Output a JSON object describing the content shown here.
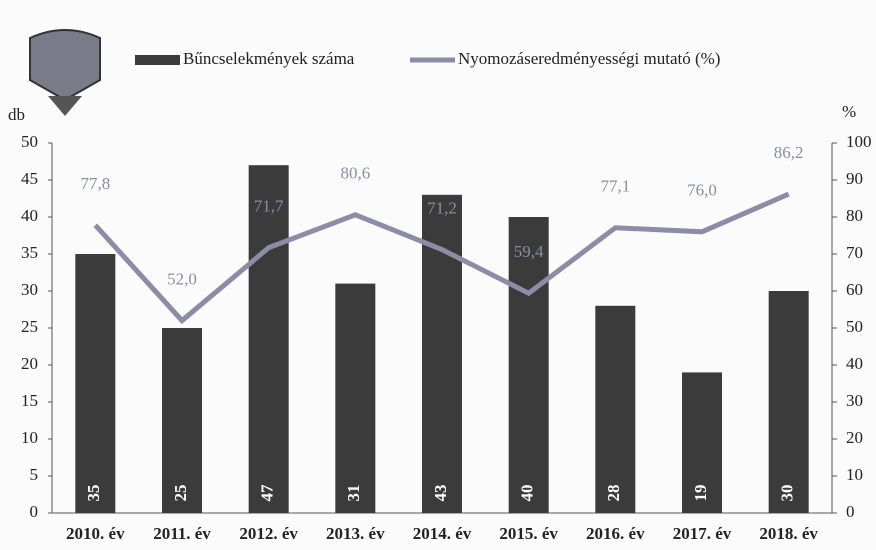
{
  "chart_data": {
    "type": "bar",
    "categories": [
      "2010. év",
      "2011. év",
      "2012. év",
      "2013. év",
      "2014. év",
      "2015. év",
      "2016. év",
      "2017. év",
      "2018. év"
    ],
    "series": [
      {
        "name": "Bűncselekmények száma",
        "color": "#3b3b3b",
        "values": [
          35,
          25,
          47,
          31,
          43,
          40,
          28,
          19,
          30
        ]
      },
      {
        "name": "Nyomozáseredményességi mutató (%)",
        "type": "line",
        "axis": "y2",
        "color": "#8c8ca6",
        "values": [
          77.8,
          52.0,
          71.7,
          80.6,
          71.2,
          59.4,
          77.1,
          76.0,
          86.2
        ],
        "value_labels": [
          "77,8",
          "52,0",
          "71,7",
          "80,6",
          "71,2",
          "59,4",
          "77,1",
          "76,0",
          "86,2"
        ]
      }
    ],
    "ylabel": "db",
    "y2label": "%",
    "ylim": [
      0,
      50
    ],
    "yticks": [
      0,
      5,
      10,
      15,
      20,
      25,
      30,
      35,
      40,
      45,
      50
    ],
    "y2lim": [
      0,
      100
    ],
    "y2ticks": [
      0,
      10,
      20,
      30,
      40,
      50,
      60,
      70,
      80,
      90,
      100
    ],
    "legend": "top"
  }
}
